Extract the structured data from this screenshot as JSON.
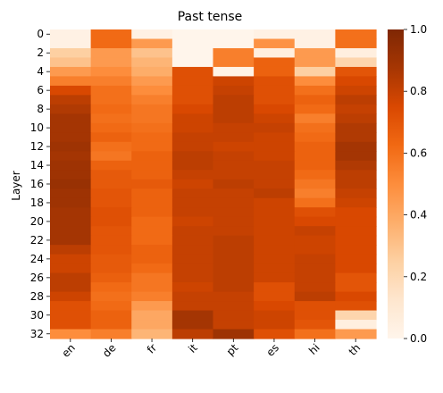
{
  "chart_data": {
    "type": "heatmap",
    "title": "Past tense",
    "xlabel": "",
    "ylabel": "Layer",
    "x_categories": [
      "en",
      "de",
      "fr",
      "it",
      "pt",
      "es",
      "hi",
      "th"
    ],
    "y_categories": [
      0,
      1,
      2,
      3,
      4,
      5,
      6,
      7,
      8,
      9,
      10,
      11,
      12,
      13,
      14,
      15,
      16,
      17,
      18,
      19,
      20,
      21,
      22,
      23,
      24,
      25,
      26,
      27,
      28,
      29,
      30,
      31,
      32
    ],
    "y_tick_labels": [
      "0",
      "2",
      "4",
      "6",
      "8",
      "10",
      "12",
      "14",
      "16",
      "18",
      "20",
      "22",
      "24",
      "26",
      "28",
      "30",
      "32"
    ],
    "colormap": "Oranges",
    "vmin": 0.0,
    "vmax": 1.0,
    "colorbar_ticks": [
      "0.0",
      "0.2",
      "0.4",
      "0.6",
      "0.8",
      "1.0"
    ],
    "values": [
      [
        0.03,
        0.62,
        0.03,
        0.0,
        0.0,
        0.03,
        0.03,
        0.6
      ],
      [
        0.03,
        0.62,
        0.45,
        0.0,
        0.0,
        0.48,
        0.03,
        0.6
      ],
      [
        0.25,
        0.45,
        0.3,
        0.0,
        0.55,
        0.05,
        0.45,
        0.05
      ],
      [
        0.3,
        0.45,
        0.35,
        0.0,
        0.55,
        0.65,
        0.45,
        0.22
      ],
      [
        0.45,
        0.5,
        0.38,
        0.72,
        0.02,
        0.65,
        0.25,
        0.7
      ],
      [
        0.55,
        0.55,
        0.45,
        0.72,
        0.78,
        0.72,
        0.5,
        0.75
      ],
      [
        0.75,
        0.6,
        0.5,
        0.72,
        0.8,
        0.72,
        0.6,
        0.78
      ],
      [
        0.82,
        0.6,
        0.55,
        0.72,
        0.82,
        0.72,
        0.65,
        0.82
      ],
      [
        0.85,
        0.62,
        0.58,
        0.75,
        0.82,
        0.75,
        0.62,
        0.8
      ],
      [
        0.88,
        0.6,
        0.58,
        0.78,
        0.82,
        0.78,
        0.55,
        0.82
      ],
      [
        0.88,
        0.62,
        0.6,
        0.78,
        0.8,
        0.8,
        0.6,
        0.85
      ],
      [
        0.88,
        0.65,
        0.62,
        0.8,
        0.8,
        0.78,
        0.62,
        0.85
      ],
      [
        0.9,
        0.6,
        0.62,
        0.8,
        0.78,
        0.78,
        0.65,
        0.88
      ],
      [
        0.88,
        0.58,
        0.65,
        0.82,
        0.8,
        0.78,
        0.65,
        0.88
      ],
      [
        0.9,
        0.65,
        0.65,
        0.82,
        0.8,
        0.8,
        0.65,
        0.85
      ],
      [
        0.9,
        0.68,
        0.65,
        0.8,
        0.8,
        0.8,
        0.62,
        0.82
      ],
      [
        0.92,
        0.68,
        0.68,
        0.78,
        0.82,
        0.8,
        0.58,
        0.82
      ],
      [
        0.9,
        0.7,
        0.65,
        0.8,
        0.8,
        0.82,
        0.55,
        0.8
      ],
      [
        0.9,
        0.7,
        0.65,
        0.8,
        0.8,
        0.78,
        0.6,
        0.78
      ],
      [
        0.88,
        0.72,
        0.65,
        0.8,
        0.8,
        0.78,
        0.72,
        0.75
      ],
      [
        0.88,
        0.72,
        0.62,
        0.78,
        0.8,
        0.78,
        0.75,
        0.75
      ],
      [
        0.88,
        0.7,
        0.62,
        0.8,
        0.8,
        0.78,
        0.8,
        0.75
      ],
      [
        0.88,
        0.7,
        0.62,
        0.8,
        0.82,
        0.78,
        0.78,
        0.75
      ],
      [
        0.82,
        0.7,
        0.65,
        0.8,
        0.82,
        0.78,
        0.78,
        0.75
      ],
      [
        0.78,
        0.68,
        0.65,
        0.8,
        0.82,
        0.78,
        0.8,
        0.75
      ],
      [
        0.78,
        0.68,
        0.62,
        0.8,
        0.82,
        0.78,
        0.8,
        0.75
      ],
      [
        0.82,
        0.66,
        0.58,
        0.8,
        0.82,
        0.78,
        0.8,
        0.7
      ],
      [
        0.82,
        0.62,
        0.58,
        0.78,
        0.82,
        0.72,
        0.8,
        0.7
      ],
      [
        0.78,
        0.6,
        0.55,
        0.8,
        0.8,
        0.72,
        0.82,
        0.75
      ],
      [
        0.72,
        0.62,
        0.45,
        0.8,
        0.8,
        0.75,
        0.72,
        0.72
      ],
      [
        0.72,
        0.65,
        0.4,
        0.88,
        0.8,
        0.78,
        0.72,
        0.22
      ],
      [
        0.72,
        0.65,
        0.4,
        0.88,
        0.8,
        0.78,
        0.7,
        0.05
      ],
      [
        0.5,
        0.55,
        0.35,
        0.82,
        0.9,
        0.72,
        0.6,
        0.45
      ]
    ]
  }
}
